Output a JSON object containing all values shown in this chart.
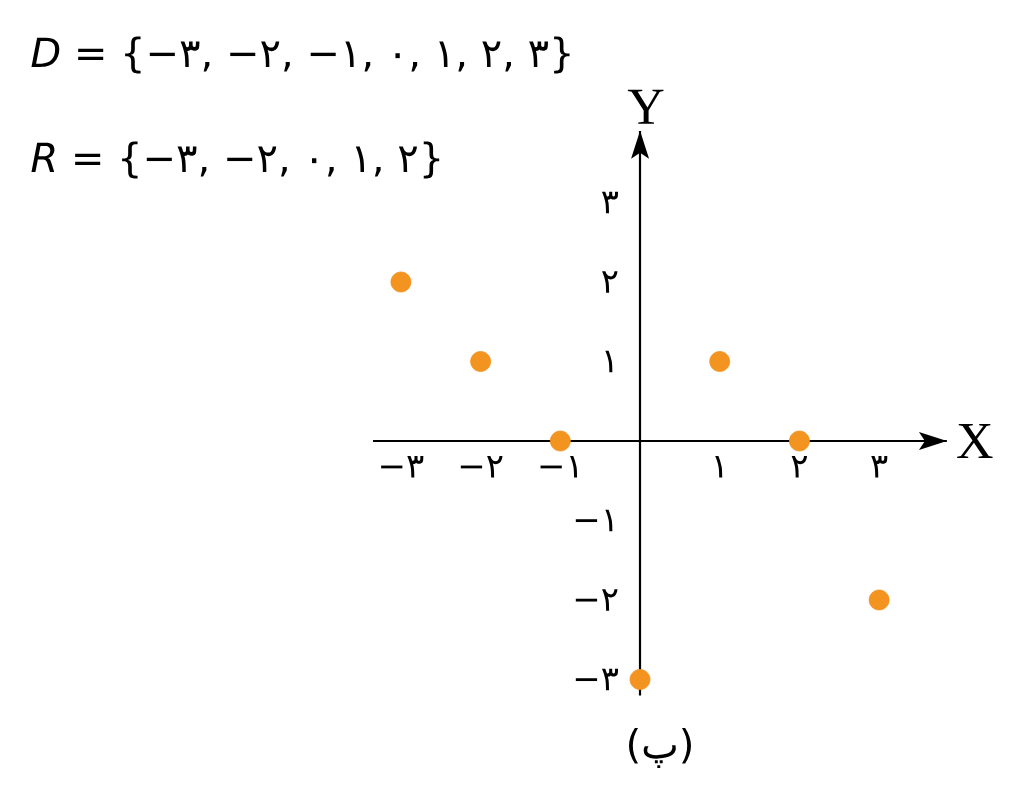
{
  "chart_data": {
    "type": "scatter",
    "xlabel": "X",
    "ylabel": "Y",
    "x": [
      -3,
      -2,
      -1,
      0,
      1,
      2,
      3
    ],
    "values": [
      2,
      1,
      0,
      -3,
      1,
      0,
      -2
    ],
    "color": "#f39320",
    "marker": "circle",
    "xlim": [
      -3.35,
      3.85
    ],
    "ylim": [
      -3.2,
      3.9
    ],
    "xticks": [
      {
        "value": -3,
        "label": "−۳"
      },
      {
        "value": -2,
        "label": "−۲"
      },
      {
        "value": -1,
        "label": "−۱"
      },
      {
        "value": 1,
        "label": "۱"
      },
      {
        "value": 2,
        "label": "۲"
      },
      {
        "value": 3,
        "label": "۳"
      }
    ],
    "yticks": [
      {
        "value": -3,
        "label": "−۳"
      },
      {
        "value": -2,
        "label": "−۲"
      },
      {
        "value": -1,
        "label": "−۱"
      },
      {
        "value": 1,
        "label": "۱"
      },
      {
        "value": 2,
        "label": "۲"
      },
      {
        "value": 3,
        "label": "۳"
      }
    ],
    "annotations": [
      "*D* = {−۳, −۲, −۱, ۰, ۱, ۲, ۳}",
      "*R* = {−۳, −۲, ۰, ۱, ۲}",
      "(پ)"
    ]
  }
}
